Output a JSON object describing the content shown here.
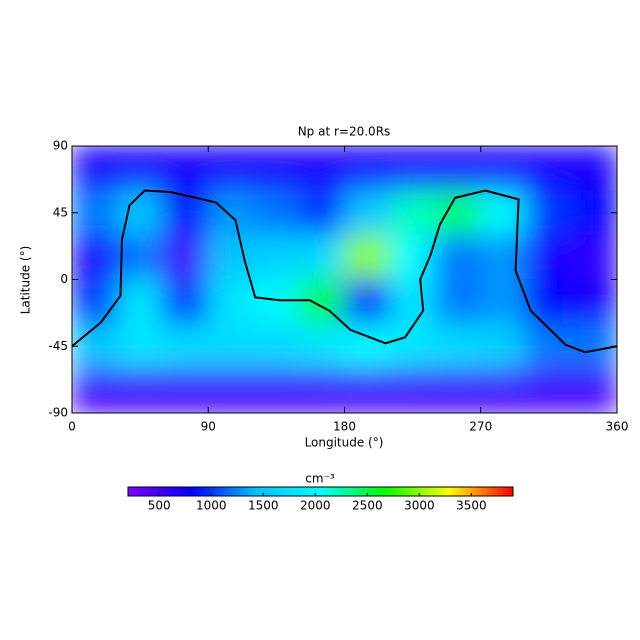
{
  "chart_data": {
    "type": "heatmap",
    "title": "Np at r=20.0Rs",
    "x_label": "Longitude (°)",
    "y_label": "Latitude (°)",
    "xlim": [
      0,
      360
    ],
    "xticks": [
      0,
      90,
      180,
      270,
      360
    ],
    "ylim": [
      -90,
      90
    ],
    "yticks": [
      -90,
      -45,
      0,
      45,
      90
    ],
    "z": [
      [
        700,
        700,
        700,
        700,
        700,
        700,
        700,
        700,
        700,
        700,
        700,
        700
      ],
      [
        1200,
        1500,
        800,
        1300,
        1200,
        1000,
        1500,
        2200,
        2400,
        2000,
        1000,
        800
      ],
      [
        700,
        1200,
        500,
        1500,
        1600,
        1700,
        3000,
        2000,
        1200,
        1300,
        700,
        600
      ],
      [
        1000,
        1800,
        1000,
        1800,
        2000,
        2500,
        900,
        1800,
        1200,
        1300,
        800,
        700
      ],
      [
        1500,
        1800,
        1700,
        1700,
        1700,
        1800,
        2000,
        1800,
        1700,
        1600,
        1200,
        1200
      ],
      [
        500,
        500,
        500,
        500,
        500,
        500,
        500,
        500,
        500,
        500,
        500,
        500
      ]
    ],
    "colormap": [
      "#7f00ff",
      "#0000ff",
      "#00c0ff",
      "#00ffff",
      "#00ff00",
      "#ffff00",
      "#ff0000"
    ],
    "colorbar_label": "cm⁻³",
    "zlim": [
      200,
      3900
    ],
    "zticks": [
      500,
      1000,
      1500,
      2000,
      2500,
      3000,
      3500
    ],
    "line": {
      "color": "#000000",
      "lon": [
        0,
        19,
        32,
        33,
        38,
        48,
        65,
        95,
        108,
        114,
        121,
        137,
        157,
        170,
        184,
        207,
        220,
        232,
        230,
        237,
        243,
        253,
        273,
        295,
        293,
        303,
        326,
        339,
        360
      ],
      "lat": [
        -45,
        -29,
        -11,
        27,
        50,
        60,
        59,
        52,
        40,
        13,
        -12,
        -14,
        -14,
        -21,
        -34,
        -43,
        -39,
        -21,
        0,
        17,
        37,
        55,
        60,
        54,
        6,
        -21,
        -44,
        -49,
        -45
      ]
    }
  }
}
